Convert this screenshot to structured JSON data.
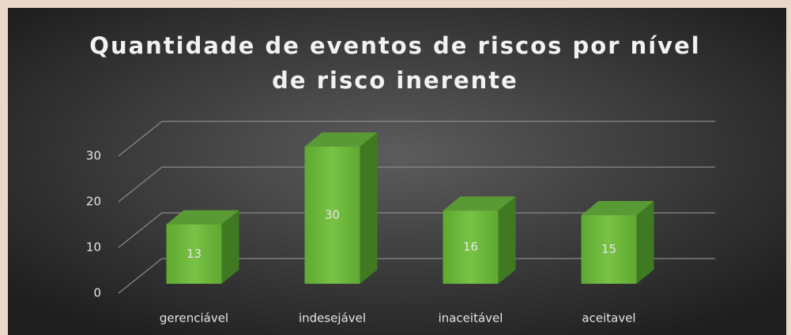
{
  "chart_data": {
    "type": "bar3d",
    "title": "Quantidade de eventos de riscos por nível de risco inerente",
    "categories": [
      "gerenciável",
      "indesejável",
      "inaceitável",
      "aceitavel"
    ],
    "values": [
      13,
      30,
      16,
      15
    ],
    "color": "#6db33f",
    "ylim": [
      0,
      30
    ],
    "yticks": [
      0,
      10,
      20,
      30
    ],
    "grid": true
  }
}
